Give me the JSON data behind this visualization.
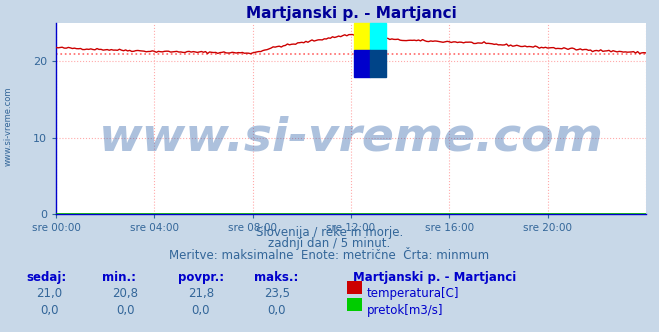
{
  "title": "Martjanski p. - Martjanci",
  "title_color": "#000099",
  "bg_color": "#c8d8e8",
  "plot_bg_color": "#ffffff",
  "grid_color": "#ffaaaa",
  "grid_style": ":",
  "xmin": 0,
  "xmax": 288,
  "ymin": 0,
  "ymax": 25,
  "yticks": [
    0,
    10,
    20
  ],
  "xlabel_ticks": [
    0,
    48,
    96,
    144,
    192,
    240,
    288
  ],
  "xlabel_labels": [
    "sre 00:00",
    "sre 04:00",
    "sre 08:00",
    "sre 12:00",
    "sre 16:00",
    "sre 20:00",
    ""
  ],
  "temp_color": "#cc0000",
  "flow_color": "#00aa00",
  "min_line_color": "#ff6666",
  "min_line_style": ":",
  "min_value": 21.0,
  "watermark_text": "www.si-vreme.com",
  "watermark_color": "#3366aa",
  "watermark_alpha": 0.4,
  "watermark_fontsize": 34,
  "footer_lines": [
    "Slovenija / reke in morje.",
    "zadnji dan / 5 minut.",
    "Meritve: maksimalne  Enote: metrične  Črta: minmum"
  ],
  "footer_color": "#336699",
  "footer_fontsize": 8.5,
  "table_headers": [
    "sedaj:",
    "min.:",
    "povpr.:",
    "maks.:"
  ],
  "table_values_temp": [
    "21,0",
    "20,8",
    "21,8",
    "23,5"
  ],
  "table_values_flow": [
    "0,0",
    "0,0",
    "0,0",
    "0,0"
  ],
  "table_label_color": "#0000cc",
  "table_value_color": "#336699",
  "station_name": "Martjanski p. - Martjanci",
  "legend_temp": "temperatura[C]",
  "legend_flow": "pretok[m3/s]",
  "left_label": "www.si-vreme.com",
  "left_label_color": "#336699",
  "axis_tick_color": "#336699",
  "spine_color": "#0000cc",
  "arrow_color": "#cc0000",
  "icon_colors": {
    "top_left": "#ffff00",
    "top_right": "#00ffff",
    "bottom_left": "#0000cc",
    "bottom_right": "#004488"
  }
}
